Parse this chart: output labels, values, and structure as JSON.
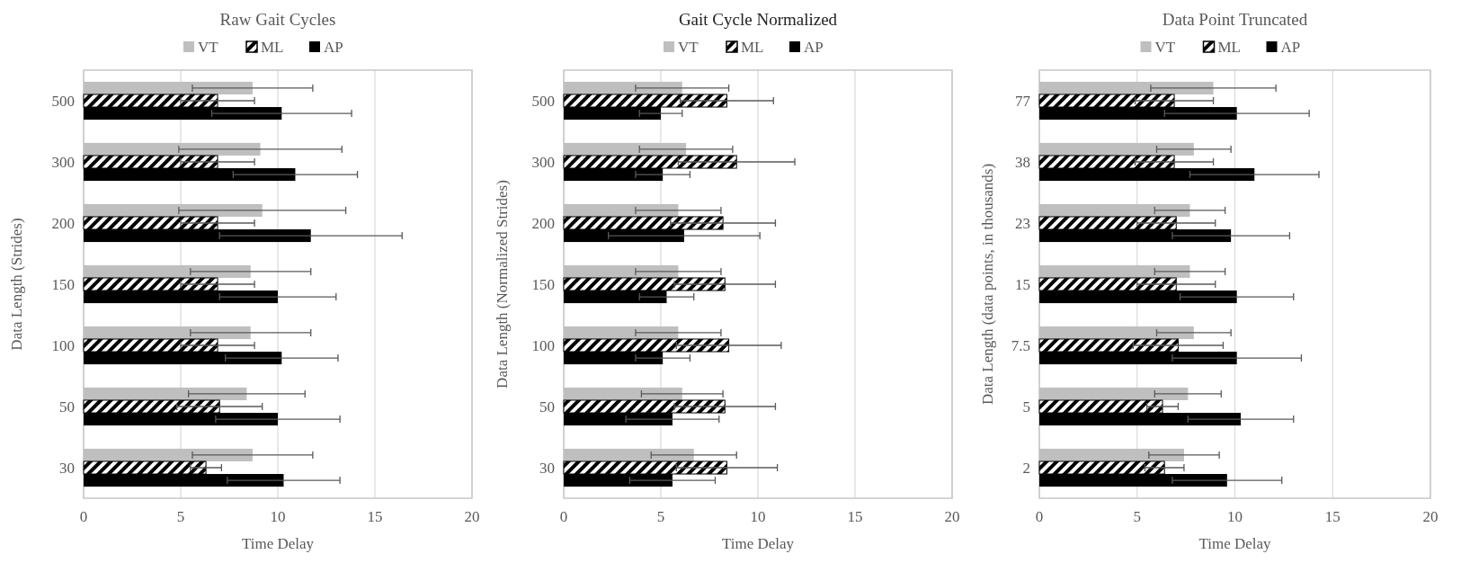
{
  "chart_data": [
    {
      "type": "bar",
      "orientation": "horizontal",
      "title": "Raw Gait Cycles",
      "xlabel": "Time Delay",
      "ylabel": "Data Length (Strides)",
      "categories": [
        "500",
        "300",
        "200",
        "150",
        "100",
        "50",
        "30"
      ],
      "xlim": [
        0,
        20
      ],
      "xticks": [
        0,
        5,
        10,
        15,
        20
      ],
      "grid": "x",
      "legend": "top",
      "series": [
        {
          "name": "VT",
          "color": "#bfbfbf",
          "values": [
            8.7,
            9.1,
            9.2,
            8.6,
            8.6,
            8.4,
            8.7
          ],
          "errors": [
            3.1,
            4.2,
            4.3,
            3.1,
            3.1,
            3.0,
            3.1
          ]
        },
        {
          "name": "ML",
          "color": "#000000",
          "values": [
            6.9,
            6.9,
            6.9,
            6.9,
            6.9,
            7.0,
            6.3
          ],
          "errors": [
            1.9,
            1.9,
            1.9,
            1.9,
            1.9,
            2.2,
            0.8
          ]
        },
        {
          "name": "AP",
          "color": "#000000",
          "values": [
            10.2,
            10.9,
            11.7,
            10.0,
            10.2,
            10.0,
            10.3
          ],
          "errors": [
            3.6,
            3.2,
            4.7,
            3.0,
            2.9,
            3.2,
            2.9
          ]
        }
      ]
    },
    {
      "type": "bar",
      "orientation": "horizontal",
      "title": "Gait Cycle Normalized",
      "xlabel": "Time Delay",
      "ylabel": "Data Length (Normalized Strides)",
      "categories": [
        "500",
        "300",
        "200",
        "150",
        "100",
        "50",
        "30"
      ],
      "xlim": [
        0,
        20
      ],
      "xticks": [
        0,
        5,
        10,
        15,
        20
      ],
      "grid": "x",
      "legend": "top",
      "series": [
        {
          "name": "VT",
          "color": "#bfbfbf",
          "values": [
            6.1,
            6.3,
            5.9,
            5.9,
            5.9,
            6.1,
            6.7
          ],
          "errors": [
            2.4,
            2.4,
            2.2,
            2.2,
            2.2,
            2.1,
            2.2
          ]
        },
        {
          "name": "ML",
          "color": "#000000",
          "values": [
            8.4,
            8.9,
            8.2,
            8.3,
            8.5,
            8.3,
            8.4
          ],
          "errors": [
            2.4,
            3.0,
            2.7,
            2.6,
            2.7,
            2.6,
            2.6
          ]
        },
        {
          "name": "AP",
          "color": "#000000",
          "values": [
            5.0,
            5.1,
            6.2,
            5.3,
            5.1,
            5.6,
            5.6
          ],
          "errors": [
            1.1,
            1.4,
            3.9,
            1.4,
            1.4,
            2.4,
            2.2
          ]
        }
      ]
    },
    {
      "type": "bar",
      "orientation": "horizontal",
      "title": "Data Point Truncated",
      "xlabel": "Time Delay",
      "ylabel": "Data Length (data points, in thousands)",
      "categories": [
        "77",
        "38",
        "23",
        "15",
        "7.5",
        "5",
        "2"
      ],
      "xlim": [
        0,
        20
      ],
      "xticks": [
        0,
        5,
        10,
        15,
        20
      ],
      "grid": "x",
      "legend": "top",
      "series": [
        {
          "name": "VT",
          "color": "#bfbfbf",
          "values": [
            8.9,
            7.9,
            7.7,
            7.7,
            7.9,
            7.6,
            7.4
          ],
          "errors": [
            3.2,
            1.9,
            1.8,
            1.8,
            1.9,
            1.7,
            1.8
          ]
        },
        {
          "name": "ML",
          "color": "#000000",
          "values": [
            6.9,
            6.9,
            7.0,
            7.0,
            7.1,
            6.3,
            6.4
          ],
          "errors": [
            2.0,
            2.0,
            2.0,
            2.0,
            2.3,
            0.8,
            1.0
          ]
        },
        {
          "name": "AP",
          "color": "#000000",
          "values": [
            10.1,
            11.0,
            9.8,
            10.1,
            10.1,
            10.3,
            9.6
          ],
          "errors": [
            3.7,
            3.3,
            3.0,
            2.9,
            3.3,
            2.7,
            2.8
          ]
        }
      ]
    }
  ]
}
